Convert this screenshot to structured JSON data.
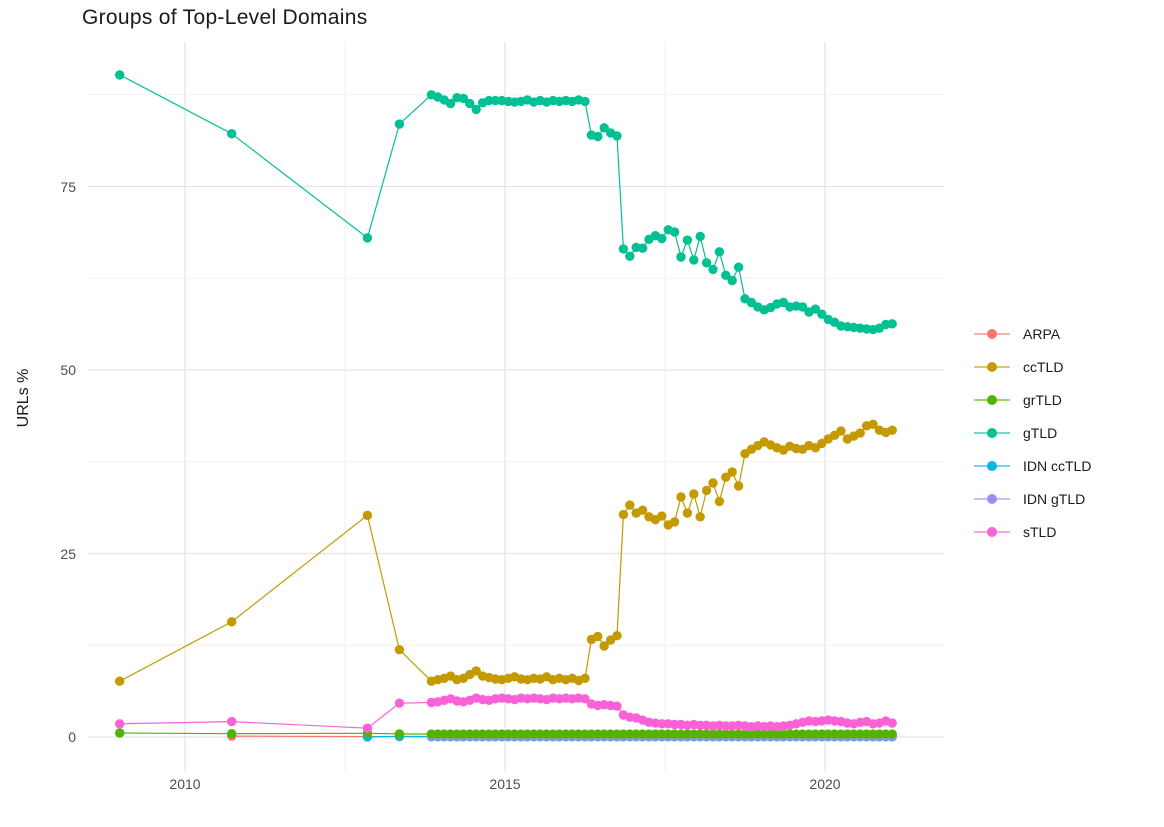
{
  "title": "Groups of Top-Level Domains",
  "y_axis": {
    "label": "URLs %",
    "tick_labels": [
      "0",
      "25",
      "50",
      "75"
    ],
    "tick_values": [
      0,
      25,
      50,
      75
    ]
  },
  "x_axis": {
    "tick_labels": [
      "2010",
      "2015",
      "2020"
    ],
    "tick_values": [
      2010,
      2015,
      2020
    ]
  },
  "legend": {
    "position": "right",
    "entries": [
      "ARPA",
      "ccTLD",
      "grTLD",
      "gTLD",
      "IDN ccTLD",
      "IDN gTLD",
      "sTLD"
    ]
  },
  "chart_data": {
    "type": "line",
    "title": "Groups of Top-Level Domains",
    "xlabel": "",
    "ylabel": "URLs %",
    "x_range_years": [
      2008.98,
      2021.05
    ],
    "ylim": [
      -4,
      95
    ],
    "xlim": [
      2008.4,
      2021.7
    ],
    "grid": "major+minor",
    "legend_position": "right",
    "marker": "point+line",
    "x_major_gridlines": [
      2010,
      2015,
      2020
    ],
    "x_minor_gridlines": [
      2012.5,
      2017.5
    ],
    "y_major_gridlines": [
      0,
      25,
      50,
      75
    ],
    "y_minor_gridlines": [
      12.5,
      37.5,
      62.5,
      87.5
    ],
    "draw_order": [
      "ARPA",
      "IDN ccTLD",
      "IDN gTLD",
      "grTLD",
      "ccTLD",
      "gTLD",
      "sTLD"
    ],
    "series": [
      {
        "name": "ARPA",
        "color": "#F8766D",
        "points": [
          [
            2010.73,
            0.12
          ],
          [
            2012.85,
            0.06
          ],
          [
            2013.35,
            0.04
          ]
        ],
        "dense": {
          "start": 2013.85,
          "step": 0.1,
          "repeat": {
            "value": 0.03,
            "count": 73
          }
        }
      },
      {
        "name": "ccTLD",
        "color": "#C49A00",
        "points": [
          [
            2008.98,
            7.6
          ],
          [
            2010.73,
            15.7
          ],
          [
            2012.85,
            30.2
          ],
          [
            2013.35,
            11.9
          ]
        ],
        "dense": {
          "start": 2013.85,
          "step": 0.1,
          "values": [
            7.6,
            7.8,
            8.0,
            8.3,
            7.8,
            8.0,
            8.5,
            9.0,
            8.3,
            8.1,
            7.9,
            7.8,
            8.0,
            8.2,
            7.9,
            7.8,
            8.0,
            7.9,
            8.2,
            7.8,
            8.0,
            7.8,
            8.0,
            7.7,
            8.0,
            13.3,
            13.7,
            12.4,
            13.2,
            13.8,
            30.3,
            31.6,
            30.5,
            30.9,
            30.0,
            29.6,
            30.1,
            28.9,
            29.3,
            32.7,
            30.5,
            33.1,
            30.0,
            33.6,
            34.6,
            32.1,
            35.4,
            36.1,
            34.2,
            38.6,
            39.2,
            39.7,
            40.2,
            39.8,
            39.4,
            39.1,
            39.6,
            39.3,
            39.2,
            39.7,
            39.4,
            40.0,
            40.6,
            41.1,
            41.7,
            40.6,
            41.0,
            41.4,
            42.4,
            42.6,
            41.8,
            41.5,
            41.8
          ]
        }
      },
      {
        "name": "grTLD",
        "color": "#53B400",
        "points": [
          [
            2008.98,
            0.55
          ],
          [
            2010.73,
            0.45
          ],
          [
            2012.85,
            0.5
          ],
          [
            2013.35,
            0.42
          ]
        ],
        "dense": {
          "start": 2013.85,
          "step": 0.1,
          "repeat": {
            "value": 0.4,
            "count": 73
          }
        }
      },
      {
        "name": "gTLD",
        "color": "#00C094",
        "points": [
          [
            2008.98,
            90.2
          ],
          [
            2010.73,
            82.2
          ],
          [
            2012.85,
            68.0
          ],
          [
            2013.35,
            83.5
          ]
        ],
        "dense": {
          "start": 2013.85,
          "step": 0.1,
          "values": [
            87.5,
            87.2,
            86.8,
            86.3,
            87.1,
            87.0,
            86.3,
            85.5,
            86.4,
            86.7,
            86.7,
            86.7,
            86.6,
            86.5,
            86.6,
            86.8,
            86.5,
            86.7,
            86.5,
            86.7,
            86.6,
            86.7,
            86.6,
            86.8,
            86.6,
            82.0,
            81.8,
            83.0,
            82.3,
            81.9,
            66.5,
            65.5,
            66.7,
            66.6,
            67.8,
            68.3,
            67.9,
            69.1,
            68.8,
            65.4,
            67.7,
            65.0,
            68.2,
            64.6,
            63.7,
            66.1,
            62.9,
            62.2,
            64.0,
            59.7,
            59.2,
            58.6,
            58.2,
            58.5,
            59.0,
            59.2,
            58.6,
            58.7,
            58.6,
            57.9,
            58.3,
            57.6,
            56.9,
            56.5,
            56.0,
            55.9,
            55.8,
            55.7,
            55.6,
            55.5,
            55.7,
            56.2,
            56.3
          ]
        }
      },
      {
        "name": "IDN ccTLD",
        "color": "#00B6EB",
        "points": [
          [
            2012.85,
            0.02
          ],
          [
            2013.35,
            0.1
          ]
        ],
        "dense": {
          "start": 2013.85,
          "step": 0.1,
          "repeat": {
            "value": 0.06,
            "count": 73
          }
        }
      },
      {
        "name": "IDN gTLD",
        "color": "#A58AFF",
        "points": [],
        "dense": {
          "start": 2013.85,
          "step": 0.1,
          "repeat": {
            "value": 0.12,
            "count": 73
          }
        }
      },
      {
        "name": "sTLD",
        "color": "#FB61D7",
        "points": [
          [
            2008.98,
            1.8
          ],
          [
            2010.73,
            2.1
          ],
          [
            2012.85,
            1.2
          ],
          [
            2013.35,
            4.6
          ]
        ],
        "dense": {
          "start": 2013.85,
          "step": 0.1,
          "values": [
            4.7,
            4.8,
            5.0,
            5.2,
            4.9,
            4.8,
            5.0,
            5.3,
            5.1,
            5.0,
            5.2,
            5.3,
            5.2,
            5.1,
            5.3,
            5.2,
            5.3,
            5.2,
            5.1,
            5.3,
            5.2,
            5.3,
            5.2,
            5.3,
            5.2,
            4.5,
            4.3,
            4.4,
            4.3,
            4.2,
            3.0,
            2.7,
            2.6,
            2.3,
            2.0,
            1.9,
            1.8,
            1.8,
            1.7,
            1.7,
            1.6,
            1.7,
            1.6,
            1.6,
            1.5,
            1.6,
            1.5,
            1.5,
            1.6,
            1.5,
            1.4,
            1.5,
            1.4,
            1.5,
            1.4,
            1.5,
            1.6,
            1.8,
            2.0,
            2.2,
            2.1,
            2.2,
            2.3,
            2.2,
            2.1,
            1.9,
            1.8,
            2.0,
            2.1,
            1.8,
            1.9,
            2.2,
            1.9
          ]
        }
      }
    ]
  }
}
